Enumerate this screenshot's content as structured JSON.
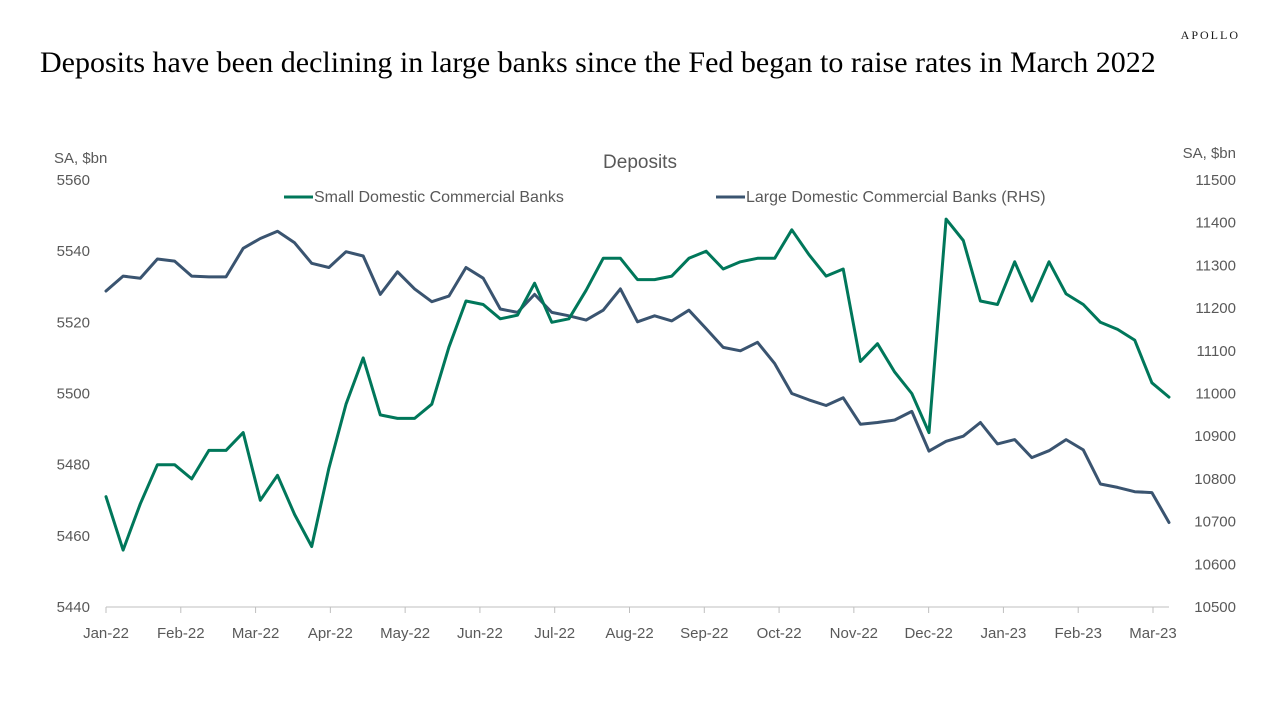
{
  "header": {
    "brand": "APOLLO",
    "headline": "Deposits have been declining in large banks since the Fed began to raise rates in March 2022"
  },
  "chart_data": {
    "type": "line",
    "title": "Deposits",
    "ylabel_left": "SA, $bn",
    "ylabel_right": "SA, $bn",
    "left_axis": {
      "min": 5440,
      "max": 5560,
      "ticks": [
        5440,
        5460,
        5480,
        5500,
        5520,
        5540,
        5560
      ]
    },
    "right_axis": {
      "min": 10500,
      "max": 11500,
      "ticks": [
        10500,
        10600,
        10700,
        10800,
        10900,
        11000,
        11100,
        11200,
        11300,
        11400,
        11500
      ]
    },
    "x_tick_labels": [
      "Jan-22",
      "Feb-22",
      "Mar-22",
      "Apr-22",
      "May-22",
      "Jun-22",
      "Jul-22",
      "Aug-22",
      "Sep-22",
      "Oct-22",
      "Nov-22",
      "Dec-22",
      "Jan-23",
      "Feb-23",
      "Mar-23"
    ],
    "legend_position": "top",
    "grid": false,
    "series": [
      {
        "name": "Small Domestic Commercial Banks",
        "axis": "left",
        "color": "#00775A",
        "values": [
          5471,
          5456,
          5469,
          5480,
          5480,
          5476,
          5484,
          5484,
          5489,
          5470,
          5477,
          5466,
          5457,
          5479,
          5497,
          5510,
          5494,
          5493,
          5493,
          5497,
          5513,
          5526,
          5525,
          5521,
          5522,
          5531,
          5520,
          5521,
          5529,
          5538,
          5538,
          5532,
          5532,
          5533,
          5538,
          5540,
          5535,
          5537,
          5538,
          5538,
          5546,
          5539,
          5533,
          5535,
          5509,
          5514,
          5506,
          5500,
          5489,
          5549,
          5543,
          5526,
          5525,
          5537,
          5526,
          5537,
          5528,
          5525,
          5520,
          5518,
          5515,
          5503,
          5499
        ]
      },
      {
        "name": "Large Domestic Commercial Banks (RHS)",
        "axis": "right",
        "color": "#3A5470",
        "values": [
          11240,
          11275,
          11270,
          11315,
          11310,
          11275,
          11273,
          11273,
          11340,
          11363,
          11380,
          11353,
          11305,
          11295,
          11332,
          11322,
          11232,
          11285,
          11245,
          11215,
          11228,
          11295,
          11270,
          11198,
          11190,
          11232,
          11190,
          11182,
          11172,
          11195,
          11245,
          11168,
          11182,
          11170,
          11195,
          11152,
          11108,
          11100,
          11120,
          11070,
          11000,
          10985,
          10972,
          10990,
          10928,
          10932,
          10938,
          10958,
          10865,
          10888,
          10900,
          10932,
          10882,
          10892,
          10850,
          10866,
          10892,
          10868,
          10788,
          10780,
          10770,
          10768,
          10698
        ]
      }
    ]
  }
}
